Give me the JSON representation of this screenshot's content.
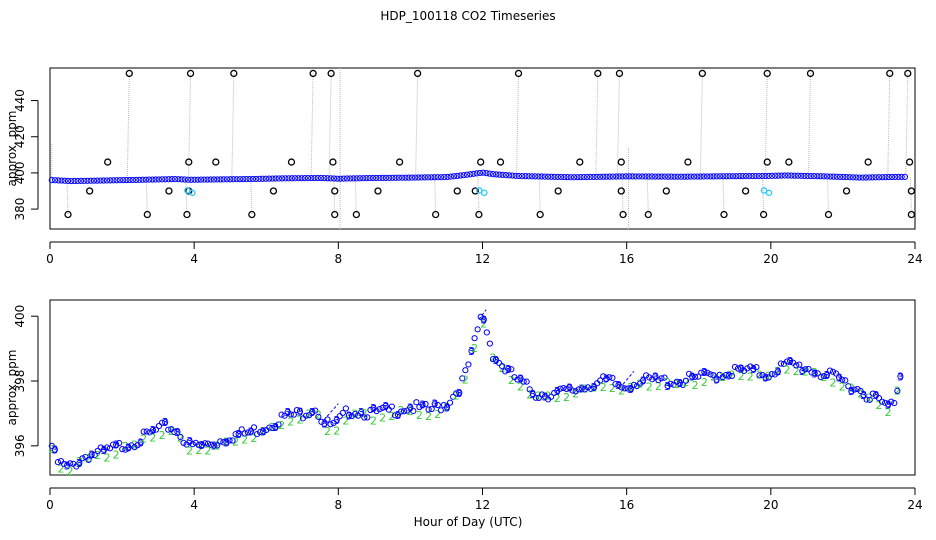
{
  "title": "HDP_100118  CO2 Timeseries",
  "xlabel": "Hour of Day (UTC)",
  "colors": {
    "frame": "#000000",
    "top_main": "#0000ff",
    "top_ring": "#000000",
    "top_other": "#33ccff",
    "top_spike": "#bbbbbb",
    "bottom_level3": "#0000ff",
    "bottom_level2": "#33cc33"
  },
  "chart_data": [
    {
      "type": "scatter",
      "ylabel": "approx. ppm",
      "xlim": [
        0,
        24
      ],
      "ylim": [
        369,
        458
      ],
      "x_ticks": [
        0,
        4,
        8,
        12,
        16,
        20,
        24
      ],
      "y_ticks": [
        380,
        400,
        420,
        440
      ],
      "baseline": {
        "x": [
          0.1,
          0.6,
          1.5,
          2.5,
          3.5,
          3.9,
          4.2,
          5.5,
          6.5,
          7.5,
          8.0,
          9.0,
          10.0,
          11.0,
          11.5,
          12.0,
          12.3,
          13.0,
          14.5,
          15.7,
          16.0,
          17.5,
          19.0,
          19.9,
          20.4,
          21.5,
          22.5,
          23.5
        ],
        "y": [
          396,
          395.5,
          395.8,
          396.2,
          396.6,
          396.2,
          396.3,
          396.6,
          397.0,
          397.2,
          396.8,
          397.2,
          397.4,
          397.7,
          398.8,
          400.2,
          399.3,
          398.3,
          397.6,
          398.0,
          398.1,
          397.9,
          398.2,
          398.3,
          398.6,
          398.1,
          397.4,
          397.8
        ]
      },
      "spikes_high": [
        2.2,
        3.9,
        5.1,
        7.3,
        7.8,
        10.2,
        13.0,
        15.2,
        15.8,
        18.1,
        19.9,
        21.1,
        23.3,
        23.8
      ],
      "spikes_low": [
        0.5,
        2.7,
        3.8,
        5.6,
        7.9,
        8.5,
        10.7,
        11.9,
        13.6,
        15.9,
        16.6,
        18.7,
        19.8,
        21.6,
        23.9
      ],
      "ring_400": [
        1.6,
        3.85,
        4.6,
        6.7,
        7.85,
        9.7,
        11.95,
        12.5,
        14.7,
        15.85,
        17.7,
        19.9,
        20.5,
        22.7,
        23.85
      ],
      "ring_390": [
        1.1,
        3.3,
        3.85,
        6.2,
        7.9,
        9.1,
        11.3,
        11.8,
        14.1,
        15.85,
        17.1,
        19.3,
        22.1,
        23.9
      ],
      "other_level": [
        {
          "x": 3.95,
          "y": 389
        },
        {
          "x": 12.05,
          "y": 389
        },
        {
          "x": 19.95,
          "y": 389
        }
      ]
    },
    {
      "type": "scatter",
      "ylabel": "approx. ppm",
      "xlim": [
        0,
        24
      ],
      "ylim": [
        395.1,
        400.5
      ],
      "x_ticks": [
        0,
        4,
        8,
        12,
        16,
        20,
        24
      ],
      "y_ticks": [
        396,
        398,
        400
      ],
      "markers": [
        "3",
        "2"
      ],
      "trend": {
        "x": [
          0.05,
          0.2,
          0.5,
          1.0,
          1.5,
          2.0,
          2.5,
          3.0,
          3.3,
          3.6,
          3.85,
          4.2,
          4.6,
          5.0,
          5.5,
          6.0,
          6.5,
          7.0,
          7.35,
          7.6,
          7.9,
          8.3,
          9.0,
          10.0,
          10.5,
          11.0,
          11.3,
          11.5,
          11.7,
          11.85,
          12.0,
          12.15,
          12.3,
          12.6,
          13.0,
          13.5,
          14.0,
          14.5,
          15.0,
          15.5,
          15.9,
          16.3,
          17.0,
          17.5,
          18.0,
          18.5,
          19.0,
          19.5,
          19.9,
          20.2,
          20.5,
          21.0,
          21.5,
          22.0,
          22.5,
          23.0,
          23.2,
          23.4,
          23.6
        ],
        "y": [
          396.0,
          395.5,
          395.3,
          395.7,
          395.8,
          396.0,
          396.2,
          396.5,
          396.6,
          396.4,
          396.0,
          396.0,
          396.1,
          396.3,
          396.4,
          396.6,
          396.9,
          397.0,
          397.2,
          396.7,
          396.6,
          397.1,
          397.0,
          397.2,
          397.1,
          397.3,
          397.7,
          398.1,
          398.8,
          399.5,
          400.1,
          399.4,
          398.8,
          398.4,
          398.0,
          397.6,
          397.6,
          397.7,
          397.9,
          398.0,
          397.8,
          398.0,
          398.0,
          398.0,
          398.1,
          398.2,
          398.3,
          398.3,
          398.2,
          398.4,
          398.5,
          398.4,
          398.2,
          398.0,
          397.7,
          397.4,
          397.2,
          397.3,
          398.2
        ]
      }
    }
  ]
}
